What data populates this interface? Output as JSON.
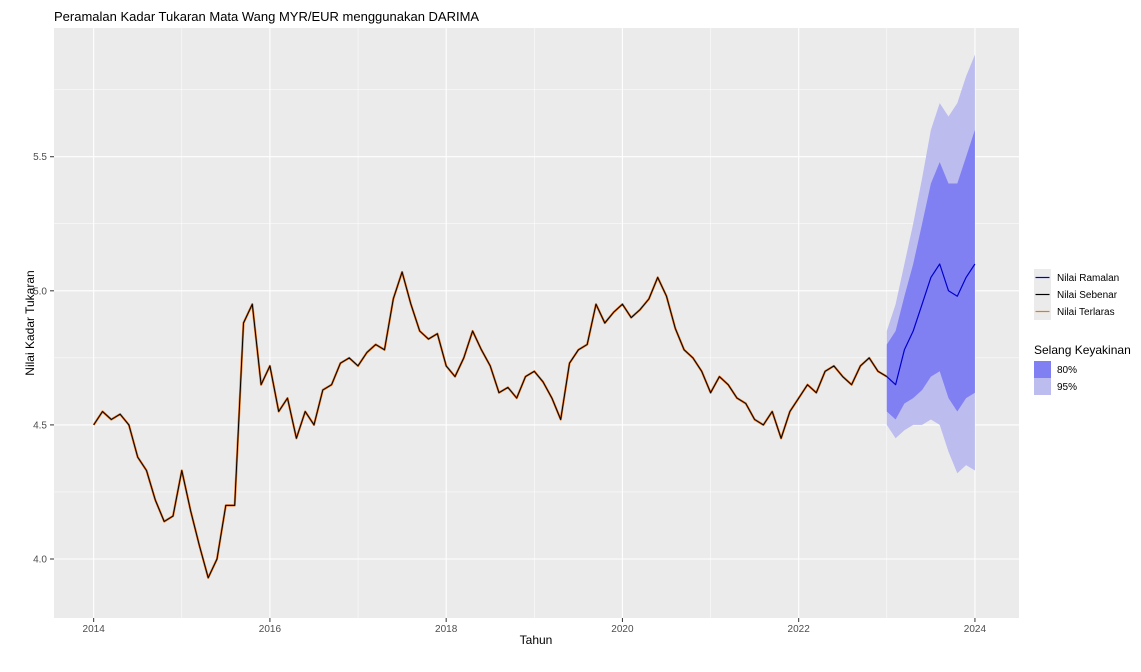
{
  "colors": {
    "panel_bg": "#ebebeb",
    "grid_major": "#ffffff",
    "forecast": "#0000cc",
    "actual": "#000000",
    "fitted": "#e87722",
    "ci80": "#8080f2",
    "ci95": "#bcbcef"
  },
  "chart_data": {
    "type": "line",
    "title": "Peramalan Kadar Tukaran Mata Wang MYR/EUR menggunakan DARIMA",
    "xlabel": "Tahun",
    "ylabel": "Nilai Kadar Tukaran",
    "xlim": [
      2013.55,
      2024.5
    ],
    "ylim": [
      3.78,
      5.98
    ],
    "x_ticks": [
      2014,
      2016,
      2018,
      2020,
      2022,
      2024
    ],
    "x_tick_labels": [
      "2014",
      "2016",
      "2018",
      "2020",
      "2022",
      "2024"
    ],
    "y_ticks": [
      4.0,
      4.5,
      5.0,
      5.5
    ],
    "y_tick_labels": [
      "4.0",
      "4.5",
      "5.0",
      "5.5"
    ],
    "grid": true,
    "legend_position": "right",
    "legend_lines": [
      {
        "name": "Nilai Ramalan",
        "color": "#0000cc"
      },
      {
        "name": "Nilai Sebenar",
        "color": "#000000"
      },
      {
        "name": "Nilai Terlaras",
        "color": "#e87722"
      }
    ],
    "legend_bands_title": "Selang Keyakinan",
    "legend_bands": [
      {
        "name": "80%",
        "color": "#8080f2"
      },
      {
        "name": "95%",
        "color": "#bcbcef"
      }
    ],
    "series_actual": {
      "x": [
        2014.0,
        2014.1,
        2014.2,
        2014.3,
        2014.4,
        2014.5,
        2014.6,
        2014.7,
        2014.8,
        2014.9,
        2015.0,
        2015.1,
        2015.2,
        2015.3,
        2015.4,
        2015.5,
        2015.6,
        2015.7,
        2015.8,
        2015.9,
        2016.0,
        2016.1,
        2016.2,
        2016.3,
        2016.4,
        2016.5,
        2016.6,
        2016.7,
        2016.8,
        2016.9,
        2017.0,
        2017.1,
        2017.2,
        2017.3,
        2017.4,
        2017.5,
        2017.6,
        2017.7,
        2017.8,
        2017.9,
        2018.0,
        2018.1,
        2018.2,
        2018.3,
        2018.4,
        2018.5,
        2018.6,
        2018.7,
        2018.8,
        2018.9,
        2019.0,
        2019.1,
        2019.2,
        2019.3,
        2019.4,
        2019.5,
        2019.6,
        2019.7,
        2019.8,
        2019.9,
        2020.0,
        2020.1,
        2020.2,
        2020.3,
        2020.4,
        2020.5,
        2020.6,
        2020.7,
        2020.8,
        2020.9,
        2021.0,
        2021.1,
        2021.2,
        2021.3,
        2021.4,
        2021.5,
        2021.6,
        2021.7,
        2021.8,
        2021.9,
        2022.0,
        2022.1,
        2022.2,
        2022.3,
        2022.4,
        2022.5,
        2022.6,
        2022.7,
        2022.8,
        2022.9,
        2023.0
      ],
      "y": [
        4.5,
        4.55,
        4.52,
        4.54,
        4.5,
        4.38,
        4.33,
        4.22,
        4.14,
        4.16,
        4.33,
        4.18,
        4.05,
        3.93,
        4.0,
        4.2,
        4.2,
        4.88,
        4.95,
        4.65,
        4.72,
        4.55,
        4.6,
        4.45,
        4.55,
        4.5,
        4.63,
        4.65,
        4.73,
        4.75,
        4.72,
        4.77,
        4.8,
        4.78,
        4.97,
        5.07,
        4.95,
        4.85,
        4.82,
        4.84,
        4.72,
        4.68,
        4.75,
        4.85,
        4.78,
        4.72,
        4.62,
        4.64,
        4.6,
        4.68,
        4.7,
        4.66,
        4.6,
        4.52,
        4.73,
        4.78,
        4.8,
        4.95,
        4.88,
        4.92,
        4.95,
        4.9,
        4.93,
        4.97,
        5.05,
        4.98,
        4.86,
        4.78,
        4.75,
        4.7,
        4.62,
        4.68,
        4.65,
        4.6,
        4.58,
        4.52,
        4.5,
        4.55,
        4.45,
        4.55,
        4.6,
        4.65,
        4.62,
        4.7,
        4.72,
        4.68,
        4.65,
        4.72,
        4.75,
        4.7,
        4.68
      ]
    },
    "series_forecast": {
      "x": [
        2023.0,
        2023.1,
        2023.2,
        2023.3,
        2023.4,
        2023.5,
        2023.6,
        2023.7,
        2023.8,
        2023.9,
        2024.0
      ],
      "y": [
        4.68,
        4.65,
        4.78,
        4.85,
        4.95,
        5.05,
        5.1,
        5.0,
        4.98,
        5.05,
        5.1
      ]
    },
    "ci80": {
      "x": [
        2023.0,
        2023.1,
        2023.2,
        2023.3,
        2023.4,
        2023.5,
        2023.6,
        2023.7,
        2023.8,
        2023.9,
        2024.0
      ],
      "lower": [
        4.55,
        4.52,
        4.58,
        4.6,
        4.63,
        4.68,
        4.7,
        4.6,
        4.55,
        4.6,
        4.62
      ],
      "upper": [
        4.8,
        4.85,
        4.98,
        5.1,
        5.25,
        5.4,
        5.48,
        5.4,
        5.4,
        5.5,
        5.6
      ]
    },
    "ci95": {
      "x": [
        2023.0,
        2023.1,
        2023.2,
        2023.3,
        2023.4,
        2023.5,
        2023.6,
        2023.7,
        2023.8,
        2023.9,
        2024.0
      ],
      "lower": [
        4.5,
        4.45,
        4.48,
        4.5,
        4.5,
        4.52,
        4.5,
        4.4,
        4.32,
        4.35,
        4.33
      ],
      "upper": [
        4.85,
        4.95,
        5.1,
        5.25,
        5.42,
        5.6,
        5.7,
        5.65,
        5.7,
        5.8,
        5.88
      ]
    }
  }
}
